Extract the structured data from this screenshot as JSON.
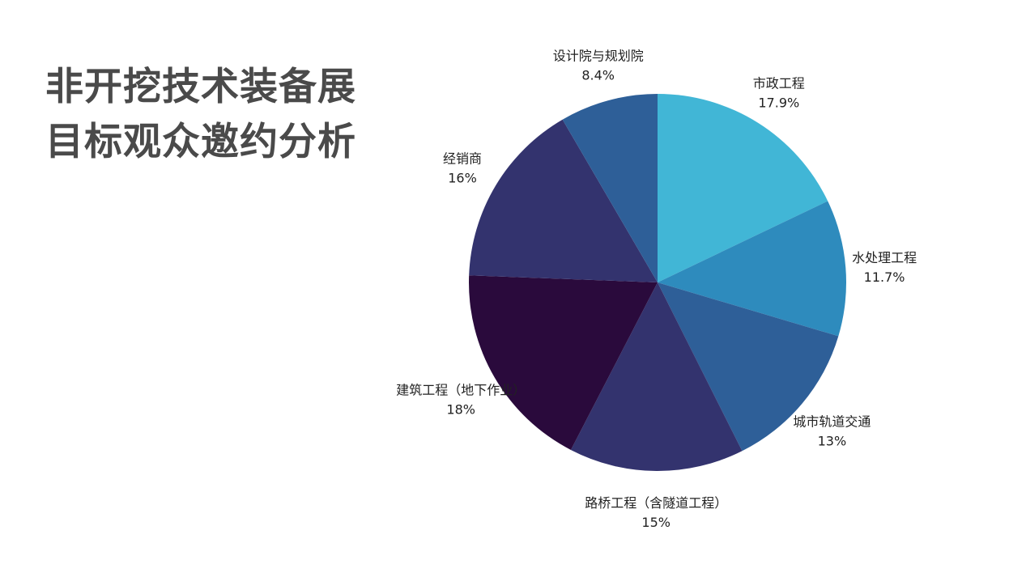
{
  "title": {
    "line1": "非开挖技术装备展",
    "line2": "目标观众邀约分析"
  },
  "chart_data": {
    "type": "pie",
    "start": "12 o'clock",
    "direction": "clockwise",
    "slices": [
      {
        "label": "市政工程",
        "value": 17.9,
        "display": "17.9%",
        "color": "#41b6d6"
      },
      {
        "label": "水处理工程",
        "value": 11.7,
        "display": "11.7%",
        "color": "#2e8bbd"
      },
      {
        "label": "城市轨道交通",
        "value": 13,
        "display": "13%",
        "color": "#2e5f98"
      },
      {
        "label": "路桥工程（含隧道工程）",
        "value": 15,
        "display": "15%",
        "color": "#33336e"
      },
      {
        "label": "建筑工程（地下作业）",
        "value": 18,
        "display": "18%",
        "color": "#2a0a3c"
      },
      {
        "label": "经销商",
        "value": 16,
        "display": "16%",
        "color": "#33336e"
      },
      {
        "label": "设计院与规划院",
        "value": 8.4,
        "display": "8.4%",
        "color": "#2e5f98"
      }
    ]
  }
}
